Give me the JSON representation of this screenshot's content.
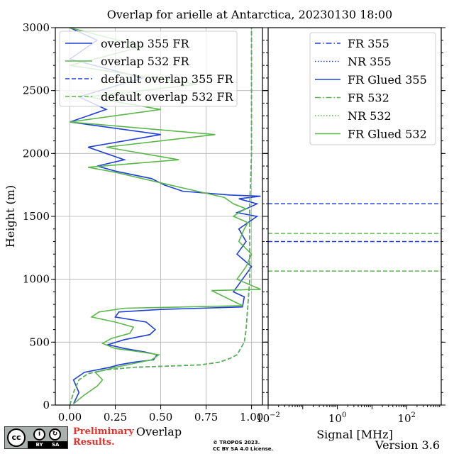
{
  "chart_data": [
    {
      "type": "line",
      "title": "Overlap for arielle at Antarctica, 20230130 18:00",
      "xlabel": "Overlap",
      "ylabel": "Height (m)",
      "xlim": [
        -0.08,
        1.06
      ],
      "ylim": [
        0,
        3000
      ],
      "xticks": [
        "0.00",
        "0.25",
        "0.50",
        "0.75",
        "1.00"
      ],
      "yticks": [
        "0",
        "500",
        "1000",
        "1500",
        "2000",
        "2500",
        "3000"
      ],
      "grid": true,
      "legend_position": "top-left",
      "series": [
        {
          "name": "overlap 355 FR",
          "color": "#1f3fd8",
          "style": "solid",
          "x": [
            0.02,
            0.05,
            0.02,
            0.08,
            0.22,
            0.27,
            0.35,
            0.46,
            0.48,
            0.42,
            0.3,
            0.21,
            0.3,
            0.44,
            0.47,
            0.42,
            0.25,
            0.27,
            0.5,
            0.95,
            0.96,
            0.9,
            0.95,
            1.0,
            0.92,
            0.97,
            0.93,
            1.03,
            0.92,
            0.97,
            1.03,
            0.93,
            1.05,
            0.88,
            0.62,
            0.52,
            0.45,
            0.25,
            0.15,
            0.3,
            0.1,
            0.5,
            0.0,
            0.2,
            0.05,
            0.4,
            0.0,
            0.15,
            0.0
          ],
          "y": [
            10,
            100,
            200,
            260,
            300,
            320,
            340,
            360,
            400,
            420,
            450,
            480,
            520,
            560,
            600,
            660,
            700,
            740,
            760,
            780,
            860,
            900,
            1000,
            1100,
            1200,
            1300,
            1400,
            1500,
            1530,
            1560,
            1600,
            1640,
            1660,
            1670,
            1700,
            1750,
            1800,
            1860,
            1900,
            1950,
            2050,
            2150,
            2250,
            2350,
            2450,
            2600,
            2750,
            2900,
            3000
          ]
        },
        {
          "name": "overlap 532 FR",
          "color": "#5ab84a",
          "style": "solid",
          "x": [
            0.02,
            0.08,
            0.15,
            0.18,
            0.14,
            0.25,
            0.35,
            0.45,
            0.49,
            0.4,
            0.25,
            0.18,
            0.23,
            0.33,
            0.35,
            0.25,
            0.12,
            0.16,
            0.3,
            0.95,
            0.78,
            1.05,
            0.92,
            0.97,
            1.0,
            0.93,
            0.96,
            0.98,
            0.9,
            0.93,
            0.97,
            0.9,
            0.85,
            0.7,
            0.55,
            0.4,
            0.25,
            0.1,
            0.6,
            0.2,
            0.8,
            0.0,
            0.5,
            0.1,
            0.7,
            0.0,
            0.4,
            0.0
          ],
          "y": [
            10,
            80,
            150,
            200,
            260,
            300,
            330,
            360,
            400,
            420,
            450,
            490,
            530,
            570,
            620,
            660,
            700,
            740,
            770,
            790,
            910,
            920,
            1000,
            1100,
            1200,
            1300,
            1400,
            1450,
            1500,
            1530,
            1560,
            1600,
            1650,
            1700,
            1750,
            1800,
            1850,
            1890,
            1950,
            2050,
            2150,
            2250,
            2350,
            2450,
            2550,
            2700,
            2850,
            3000
          ]
        },
        {
          "name": "default overlap 355 FR",
          "color": "#1f3fd8",
          "style": "dashed",
          "x": [
            0.0,
            0.02,
            0.05,
            0.1,
            0.2,
            0.35,
            0.55,
            0.72,
            0.82,
            0.88,
            0.92,
            0.94,
            0.96,
            0.97,
            0.98,
            0.99,
            0.99,
            0.99,
            1.0,
            1.0,
            1.0
          ],
          "y": [
            0,
            100,
            200,
            250,
            280,
            300,
            310,
            320,
            340,
            370,
            400,
            450,
            500,
            600,
            800,
            1000,
            1300,
            1600,
            2000,
            2500,
            3000
          ]
        },
        {
          "name": "default overlap 532 FR",
          "color": "#5ab84a",
          "style": "dashed",
          "x": [
            0.0,
            0.02,
            0.05,
            0.1,
            0.2,
            0.35,
            0.55,
            0.72,
            0.82,
            0.88,
            0.92,
            0.94,
            0.96,
            0.97,
            0.98,
            0.99,
            0.99,
            0.99,
            1.0,
            1.0,
            1.0
          ],
          "y": [
            0,
            100,
            200,
            250,
            280,
            300,
            310,
            320,
            340,
            370,
            400,
            450,
            500,
            600,
            800,
            1000,
            1300,
            1600,
            2000,
            2500,
            3000
          ]
        }
      ]
    },
    {
      "type": "line",
      "xlabel": "Signal [MHz]",
      "xscale": "log",
      "xlim": [
        0.01,
        1000
      ],
      "xticks": [
        {
          "base": "10",
          "exp": "−2"
        },
        {
          "base": "10",
          "exp": "0"
        },
        {
          "base": "10",
          "exp": "2"
        }
      ],
      "ylim": [
        0,
        3000
      ],
      "grid": false,
      "legend_position": "top-right",
      "series": [
        {
          "name": "FR 355",
          "color": "#1f3fd8",
          "style": "dashdot"
        },
        {
          "name": "NR 355",
          "color": "#1f3fd8",
          "style": "dotted"
        },
        {
          "name": "FR Glued 355",
          "color": "#1f3fd8",
          "style": "solid"
        },
        {
          "name": "FR 532",
          "color": "#5ab84a",
          "style": "dashdot"
        },
        {
          "name": "NR 532",
          "color": "#5ab84a",
          "style": "dotted"
        },
        {
          "name": "FR Glued 532",
          "color": "#5ab84a",
          "style": "solid"
        }
      ],
      "hlines": [
        {
          "y": 1600,
          "color": "#1f3fd8",
          "style": "dashed"
        },
        {
          "y": 1300,
          "color": "#1f3fd8",
          "style": "dashed"
        },
        {
          "y": 1365,
          "color": "#5ab84a",
          "style": "dashed"
        },
        {
          "y": 1065,
          "color": "#5ab84a",
          "style": "dashed"
        }
      ]
    }
  ],
  "footer": {
    "license_badge": "CC BY SA",
    "badge_cc": "cc",
    "badge_strip": "BY SA",
    "preliminary_line1": "Preliminary",
    "preliminary_line2": "Results.",
    "copyright_line1": "© TROPOS 2023.",
    "copyright_line2": "CC BY SA 4.0 License.",
    "version": "Version 3.6"
  }
}
